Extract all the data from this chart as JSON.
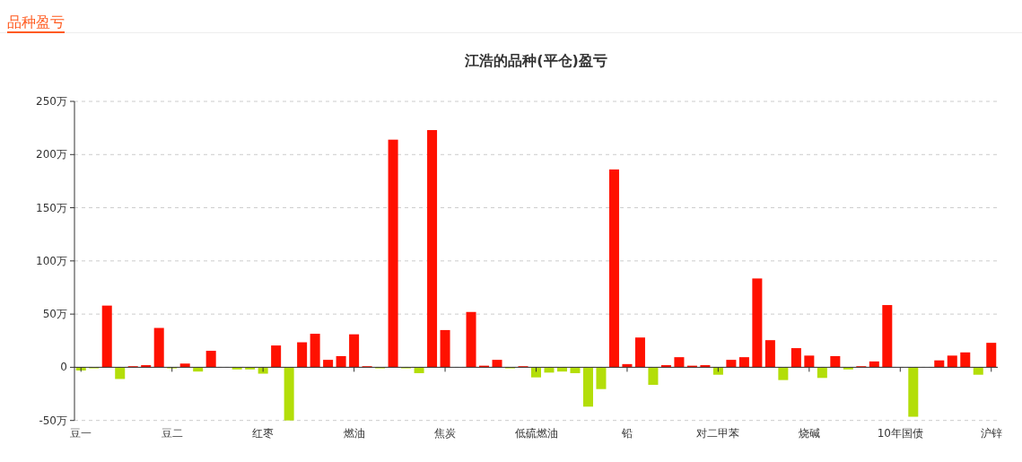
{
  "chart_data": {
    "type": "bar",
    "title": "江浩的品种(平仓)盈亏",
    "annotations": [
      "品种盈亏"
    ],
    "categories": [
      "豆一",
      null,
      null,
      null,
      null,
      null,
      null,
      "豆二",
      null,
      null,
      null,
      null,
      null,
      null,
      "红枣",
      null,
      null,
      null,
      null,
      null,
      null,
      "燃油",
      null,
      null,
      null,
      null,
      null,
      null,
      "焦炭",
      null,
      null,
      null,
      null,
      null,
      null,
      "低硫燃油",
      null,
      null,
      null,
      null,
      null,
      null,
      "铅",
      null,
      null,
      null,
      null,
      null,
      null,
      "对二甲苯",
      null,
      null,
      null,
      null,
      null,
      null,
      "烧碱",
      null,
      null,
      null,
      null,
      null,
      null,
      "10年国债",
      null,
      null,
      null,
      null,
      null,
      null,
      "沪锌"
    ],
    "values": [
      -3,
      -1,
      58,
      -11,
      1,
      2,
      37,
      -1,
      3.5,
      -4,
      15.5,
      0,
      -2,
      -2,
      -6,
      20.5,
      -50,
      23.5,
      31.5,
      7,
      10.5,
      31,
      1,
      -1,
      214,
      -1,
      -5.5,
      223,
      35,
      0,
      52,
      1.5,
      7,
      -1,
      1,
      -9.5,
      -5,
      -4,
      -5.5,
      -37,
      -20.5,
      186,
      3,
      28,
      -16.5,
      2,
      9.5,
      1.5,
      2,
      -7,
      7,
      9.5,
      83.5,
      25.5,
      -12,
      18,
      11,
      -10,
      10.5,
      -2,
      1,
      5.5,
      58.5,
      0,
      -46.5,
      0,
      6.5,
      11,
      14,
      -7,
      23
    ],
    "colors": [
      "#b3de09",
      "#b3de09",
      "#ff1100",
      "#b3de09",
      "#ff1100",
      "#ff1100",
      "#ff1100",
      "#b3de09",
      "#ff1100",
      "#b3de09",
      "#ff1100",
      "#ff1100",
      "#b3de09",
      "#b3de09",
      "#b3de09",
      "#ff1100",
      "#b3de09",
      "#ff1100",
      "#ff1100",
      "#ff1100",
      "#ff1100",
      "#ff1100",
      "#ff1100",
      "#b3de09",
      "#ff1100",
      "#b3de09",
      "#b3de09",
      "#ff1100",
      "#ff1100",
      "#ff1100",
      "#ff1100",
      "#ff1100",
      "#ff1100",
      "#b3de09",
      "#ff1100",
      "#b3de09",
      "#b3de09",
      "#b3de09",
      "#b3de09",
      "#b3de09",
      "#b3de09",
      "#ff1100",
      "#ff1100",
      "#ff1100",
      "#b3de09",
      "#ff1100",
      "#ff1100",
      "#ff1100",
      "#ff1100",
      "#b3de09",
      "#ff1100",
      "#ff1100",
      "#ff1100",
      "#ff1100",
      "#b3de09",
      "#ff1100",
      "#ff1100",
      "#b3de09",
      "#ff1100",
      "#b3de09",
      "#ff1100",
      "#ff1100",
      "#ff1100",
      "#ff1100",
      "#b3de09",
      "#ff1100",
      "#ff1100",
      "#ff1100",
      "#ff1100",
      "#b3de09",
      "#ff1100"
    ],
    "ylim": [
      -50,
      250
    ],
    "yticks": [
      {
        "value": -50,
        "label": "-50万"
      },
      {
        "value": 0,
        "label": "0"
      },
      {
        "value": 50,
        "label": "50万"
      },
      {
        "value": 100,
        "label": "100万"
      },
      {
        "value": 150,
        "label": "150万"
      },
      {
        "value": 200,
        "label": "200万"
      },
      {
        "value": 250,
        "label": "250万"
      }
    ],
    "grid": "y"
  }
}
